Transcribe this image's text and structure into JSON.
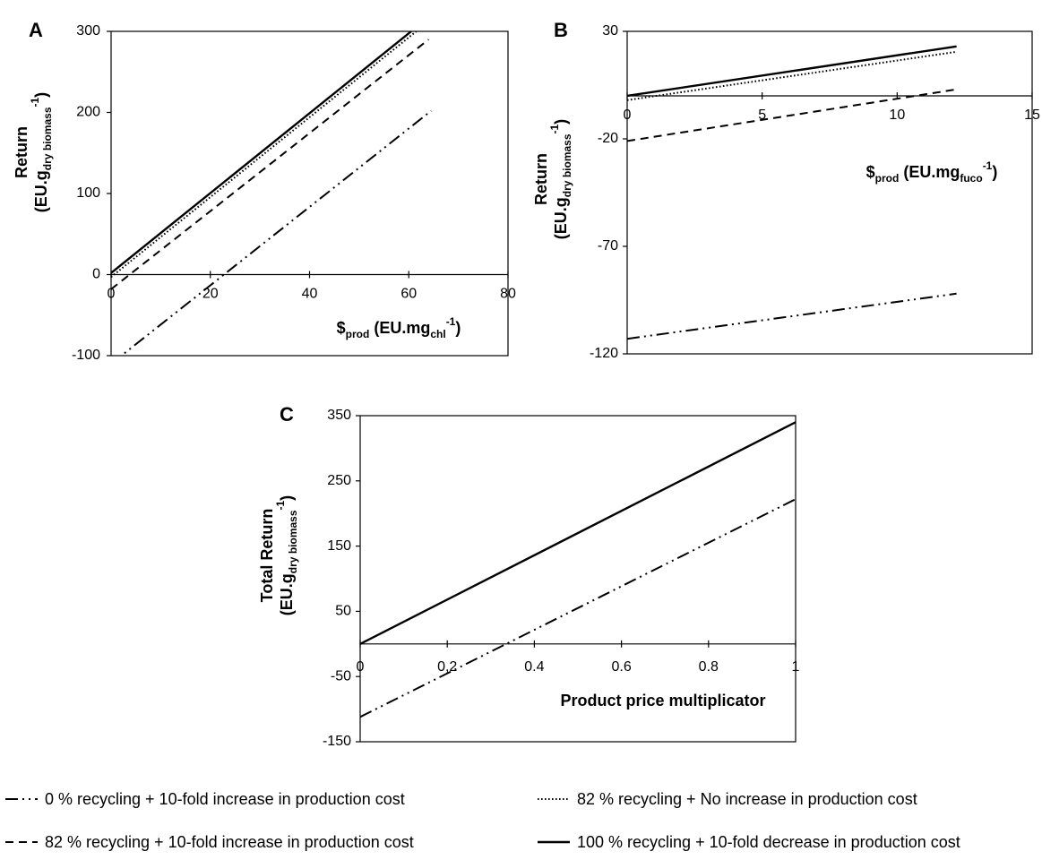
{
  "chart_data": [
    {
      "type": "line",
      "panel": "A",
      "xlabel": "$prod (EU.mgchl-1)",
      "xlabel_parts": {
        "main": "$",
        "sub": "prod",
        "unit_pre": " (EU.mg",
        "unit_sub": "chl",
        "unit_sup": "-1",
        "unit_post": ")"
      },
      "ylabel": "Return (EU.gdry biomass-1)",
      "ylabel_parts": {
        "line1": "Return",
        "line2_pre": "(EU.g",
        "line2_sub": "dry biomass",
        "line2_sup": "-1",
        "line2_post": ")"
      },
      "xlim": [
        0,
        80
      ],
      "ylim": [
        -100,
        300
      ],
      "xticks": [
        "0",
        "20",
        "40",
        "60",
        "80"
      ],
      "yticks": [
        "-100",
        "0",
        "100",
        "200",
        "300"
      ],
      "series": [
        {
          "name": "0 % recycling + 10-fold increase in production cost",
          "style": "dashdotdot",
          "x": [
            0,
            64.5
          ],
          "y": [
            -110,
            202
          ]
        },
        {
          "name": "82 % recycling + No increase in production cost",
          "style": "dotted",
          "x": [
            0,
            61.5
          ],
          "y": [
            -3,
            300
          ]
        },
        {
          "name": "82 % recycling + 10-fold increase in production cost",
          "style": "dashed",
          "x": [
            0,
            64
          ],
          "y": [
            -18,
            290
          ]
        },
        {
          "name": "100 % recycling + 10-fold decrease in production cost",
          "style": "solid",
          "x": [
            0,
            60.5
          ],
          "y": [
            2,
            300
          ]
        }
      ]
    },
    {
      "type": "line",
      "panel": "B",
      "xlabel": "$prod (EU.mgfuco-1)",
      "xlabel_parts": {
        "main": "$",
        "sub": "prod",
        "unit_pre": " (EU.mg",
        "unit_sub": "fuco",
        "unit_sup": "-1",
        "unit_post": ")"
      },
      "ylabel": "Return (EU.gdry biomass-1)",
      "ylabel_parts": {
        "line1": "Return",
        "line2_pre": "(EU.g",
        "line2_sub": "dry biomass",
        "line2_sup": "-1",
        "line2_post": ")"
      },
      "xlim": [
        0,
        15
      ],
      "ylim": [
        -120,
        30
      ],
      "xticks": [
        "0",
        "5",
        "10",
        "15"
      ],
      "yticks": [
        "-120",
        "-70",
        "-20",
        "30"
      ],
      "series": [
        {
          "name": "0 % recycling + 10-fold increase in production cost",
          "style": "dashdotdot",
          "x": [
            0,
            12.2
          ],
          "y": [
            -113,
            -92
          ]
        },
        {
          "name": "82 % recycling + No increase in production cost",
          "style": "dotted",
          "x": [
            0,
            12.2
          ],
          "y": [
            -2,
            20.5
          ]
        },
        {
          "name": "82 % recycling + 10-fold increase in production cost",
          "style": "dashed",
          "x": [
            0,
            12.2
          ],
          "y": [
            -21,
            3
          ]
        },
        {
          "name": "100 % recycling + 10-fold decrease in production cost",
          "style": "solid",
          "x": [
            0,
            12.2
          ],
          "y": [
            0,
            23
          ]
        }
      ]
    },
    {
      "type": "line",
      "panel": "C",
      "xlabel": "Product price multiplicator",
      "ylabel": "Total Return (EU.gdry biomass-1)",
      "ylabel_parts": {
        "line1": "Total Return",
        "line2_pre": "(EU.g",
        "line2_sub": "dry biomass",
        "line2_sup": "-1",
        "line2_post": ")"
      },
      "xlim": [
        0,
        1
      ],
      "ylim": [
        -150,
        350
      ],
      "xticks": [
        "0",
        "0.2",
        "0.4",
        "0.6",
        "0.8",
        "1"
      ],
      "xtick_labels_shown": [
        "0",
        "0,2",
        "0.4",
        "0.6",
        "0.8",
        "1"
      ],
      "yticks": [
        "-150",
        "-50",
        "50",
        "150",
        "250",
        "350"
      ],
      "series": [
        {
          "name": "0 % recycling + 10-fold increase in production cost",
          "style": "dashdotdot",
          "x": [
            0,
            1
          ],
          "y": [
            -112,
            222
          ]
        },
        {
          "name": "100 % recycling + 10-fold decrease in production cost",
          "style": "solid",
          "x": [
            0,
            1
          ],
          "y": [
            0,
            340
          ]
        }
      ]
    }
  ],
  "legend": [
    {
      "label": "0 % recycling + 10-fold increase in production cost",
      "style": "dashdotdot"
    },
    {
      "label": "82 % recycling + No increase in production cost",
      "style": "dotted"
    },
    {
      "label": "82 % recycling + 10-fold increase in production cost",
      "style": "dashed"
    },
    {
      "label": "100 % recycling + 10-fold decrease in production cost",
      "style": "solid"
    }
  ]
}
